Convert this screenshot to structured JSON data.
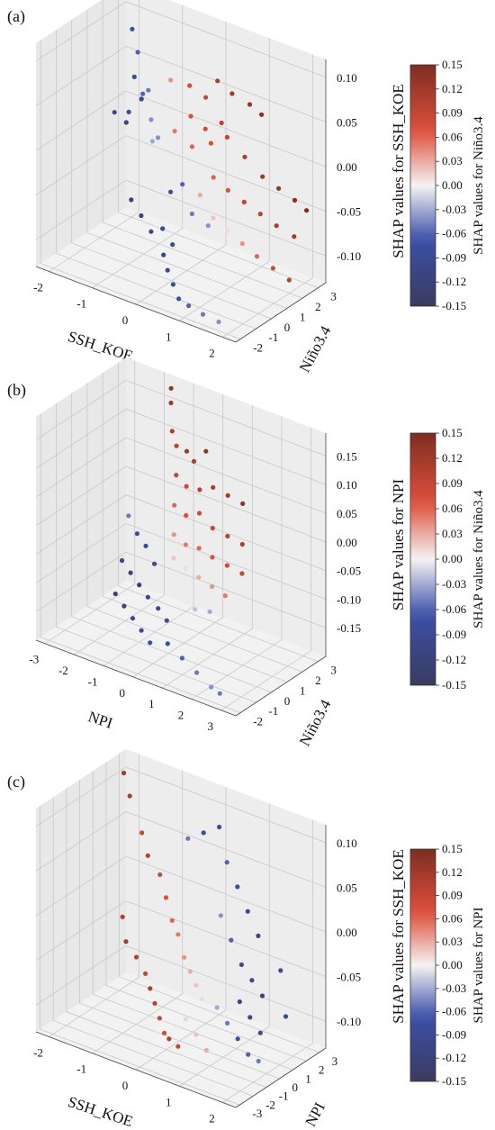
{
  "colors": {
    "background": "#ffffff",
    "pane": "#f2f2f2",
    "grid": "#c8c8c8",
    "cmap_low": "#3a3b5e",
    "cmap_mid": "#f4f3f3",
    "cmap_high": "#7d2d21"
  },
  "chart_data": [
    {
      "type": "scatter3d",
      "panel_label": "(a)",
      "xlabel": "SSH_KOE",
      "ylabel": "Niño3.4",
      "zlabel": "SHAP values for SSH_KOE",
      "colorbar_label": "SHAP values for Niño3.4",
      "xticks": [
        "-2",
        "-1",
        "0",
        "1",
        "2"
      ],
      "yticks": [
        "-2",
        "-1",
        "0",
        "1",
        "2",
        "3"
      ],
      "zticks": [
        "-0.10",
        "-0.05",
        "0.00",
        "0.05",
        "0.10"
      ],
      "colorbar_ticks": [
        "-0.15",
        "-0.12",
        "-0.09",
        "-0.06",
        "-0.03",
        "0.00",
        "0.03",
        "0.06",
        "0.09",
        "0.12",
        "0.15"
      ],
      "xlim": [
        -2.3,
        2.3
      ],
      "ylim": [
        -2.3,
        3.5
      ],
      "zlim": [
        -0.13,
        0.12
      ],
      "clim": [
        -0.15,
        0.15
      ],
      "points": [
        {
          "x": -2.0,
          "y": 2.8,
          "z": 0.12,
          "c": -0.05
        },
        {
          "x": -1.8,
          "y": 2.5,
          "z": 0.09,
          "c": -0.07
        },
        {
          "x": -1.6,
          "y": 2.3,
          "z": 0.07,
          "c": -0.06
        },
        {
          "x": -1.5,
          "y": 1.8,
          "z": 0.05,
          "c": -0.08
        },
        {
          "x": -1.3,
          "y": 1.7,
          "z": 0.03,
          "c": -0.1
        },
        {
          "x": -1.2,
          "y": 1.5,
          "z": 0.04,
          "c": -0.06
        },
        {
          "x": -1.0,
          "y": 1.3,
          "z": 0.05,
          "c": -0.05
        },
        {
          "x": -0.9,
          "y": 1.2,
          "z": 0.02,
          "c": -0.04
        },
        {
          "x": -0.8,
          "y": 1.0,
          "z": 0.0,
          "c": -0.03
        },
        {
          "x": -0.6,
          "y": 0.8,
          "z": 0.01,
          "c": -0.04
        },
        {
          "x": -1.4,
          "y": 1.0,
          "z": 0.01,
          "c": -0.11
        },
        {
          "x": -1.6,
          "y": 0.8,
          "z": 0.02,
          "c": -0.1
        },
        {
          "x": -1.2,
          "y": 0.6,
          "z": 0.03,
          "c": -0.08
        },
        {
          "x": -0.7,
          "y": 1.9,
          "z": 0.06,
          "c": 0.04
        },
        {
          "x": -0.3,
          "y": 2.0,
          "z": 0.06,
          "c": 0.08
        },
        {
          "x": 0.0,
          "y": 2.2,
          "z": 0.05,
          "c": 0.09
        },
        {
          "x": 0.2,
          "y": 2.4,
          "z": 0.07,
          "c": 0.11
        },
        {
          "x": 0.5,
          "y": 2.5,
          "z": 0.06,
          "c": 0.12
        },
        {
          "x": 0.8,
          "y": 2.8,
          "z": 0.05,
          "c": 0.13
        },
        {
          "x": 1.0,
          "y": 3.0,
          "z": 0.04,
          "c": 0.14
        },
        {
          "x": -0.2,
          "y": 1.8,
          "z": 0.03,
          "c": 0.07
        },
        {
          "x": 0.1,
          "y": 1.9,
          "z": 0.02,
          "c": 0.08
        },
        {
          "x": 0.4,
          "y": 2.1,
          "z": 0.03,
          "c": 0.1
        },
        {
          "x": -0.5,
          "y": 1.6,
          "z": 0.01,
          "c": 0.05
        },
        {
          "x": -0.1,
          "y": 1.6,
          "z": 0.0,
          "c": 0.06
        },
        {
          "x": 0.3,
          "y": 1.7,
          "z": 0.01,
          "c": 0.07
        },
        {
          "x": 0.6,
          "y": 1.9,
          "z": 0.02,
          "c": 0.09
        },
        {
          "x": 0.9,
          "y": 2.2,
          "z": 0.0,
          "c": 0.11
        },
        {
          "x": 1.2,
          "y": 2.5,
          "z": -0.02,
          "c": 0.12
        },
        {
          "x": 1.5,
          "y": 2.7,
          "z": -0.03,
          "c": 0.13
        },
        {
          "x": 1.8,
          "y": 2.9,
          "z": -0.04,
          "c": 0.14
        },
        {
          "x": 2.0,
          "y": 3.1,
          "z": -0.05,
          "c": 0.15
        },
        {
          "x": 0.5,
          "y": 1.3,
          "z": -0.02,
          "c": 0.06
        },
        {
          "x": 0.8,
          "y": 1.4,
          "z": -0.03,
          "c": 0.07
        },
        {
          "x": 1.1,
          "y": 1.6,
          "z": -0.04,
          "c": 0.09
        },
        {
          "x": 1.4,
          "y": 1.8,
          "z": -0.05,
          "c": 0.1
        },
        {
          "x": 1.7,
          "y": 2.0,
          "z": -0.06,
          "c": 0.11
        },
        {
          "x": 2.0,
          "y": 2.3,
          "z": -0.07,
          "c": 0.12
        },
        {
          "x": 0.3,
          "y": 1.0,
          "z": -0.04,
          "c": 0.03
        },
        {
          "x": 0.6,
          "y": 1.0,
          "z": -0.06,
          "c": 0.02
        },
        {
          "x": 0.9,
          "y": 1.1,
          "z": -0.07,
          "c": 0.01
        },
        {
          "x": 1.2,
          "y": 1.2,
          "z": -0.08,
          "c": 0.04
        },
        {
          "x": 1.5,
          "y": 1.3,
          "z": -0.09,
          "c": 0.06
        },
        {
          "x": 1.8,
          "y": 1.5,
          "z": -0.1,
          "c": 0.08
        },
        {
          "x": 2.1,
          "y": 1.7,
          "z": -0.11,
          "c": 0.1
        },
        {
          "x": -1.0,
          "y": 0.2,
          "z": -0.06,
          "c": -0.12
        },
        {
          "x": -0.7,
          "y": 0.0,
          "z": -0.07,
          "c": -0.11
        },
        {
          "x": -0.4,
          "y": -0.2,
          "z": -0.08,
          "c": -0.1
        },
        {
          "x": -0.1,
          "y": -0.3,
          "z": -0.07,
          "c": -0.09
        },
        {
          "x": 0.2,
          "y": -0.5,
          "z": -0.08,
          "c": -0.08
        },
        {
          "x": 0.1,
          "y": -0.8,
          "z": -0.09,
          "c": -0.1
        },
        {
          "x": 0.3,
          "y": -1.1,
          "z": -0.1,
          "c": -0.09
        },
        {
          "x": 0.5,
          "y": -1.3,
          "z": -0.11,
          "c": -0.08
        },
        {
          "x": 0.7,
          "y": -1.5,
          "z": -0.12,
          "c": -0.07
        },
        {
          "x": 1.0,
          "y": -1.7,
          "z": -0.12,
          "c": -0.06
        },
        {
          "x": 1.4,
          "y": -1.9,
          "z": -0.12,
          "c": -0.05
        },
        {
          "x": 1.8,
          "y": -2.0,
          "z": -0.12,
          "c": -0.04
        },
        {
          "x": 0.4,
          "y": 0.2,
          "z": -0.05,
          "c": -0.05
        },
        {
          "x": 0.7,
          "y": 0.4,
          "z": -0.06,
          "c": -0.04
        },
        {
          "x": -0.2,
          "y": 0.5,
          "z": -0.04,
          "c": -0.07
        },
        {
          "x": 0.0,
          "y": 0.7,
          "z": -0.03,
          "c": -0.06
        }
      ]
    },
    {
      "type": "scatter3d",
      "panel_label": "(b)",
      "xlabel": "NPI",
      "ylabel": "Niño3.4",
      "zlabel": "SHAP values for NPI",
      "colorbar_label": "SHAP values for Niño3.4",
      "xticks": [
        "-3",
        "-2",
        "-1",
        "0",
        "1",
        "2",
        "3"
      ],
      "yticks": [
        "-2",
        "-1",
        "0",
        "1",
        "2",
        "3"
      ],
      "zticks": [
        "-0.15",
        "-0.10",
        "-0.05",
        "0.00",
        "0.05",
        "0.10",
        "0.15"
      ],
      "colorbar_ticks": [
        "-0.15",
        "-0.12",
        "-0.09",
        "-0.06",
        "-0.03",
        "0.00",
        "0.03",
        "0.06",
        "0.09",
        "0.12",
        "0.15"
      ],
      "xlim": [
        -3.3,
        3.5
      ],
      "ylim": [
        -2.3,
        3.5
      ],
      "zlim": [
        -0.2,
        0.19
      ],
      "clim": [
        -0.15,
        0.15
      ],
      "points": [
        {
          "x": -1.5,
          "y": 3.0,
          "z": 0.18,
          "c": 0.13
        },
        {
          "x": -1.4,
          "y": 2.8,
          "z": 0.16,
          "c": 0.12
        },
        {
          "x": -1.2,
          "y": 2.5,
          "z": 0.12,
          "c": 0.11
        },
        {
          "x": -1.0,
          "y": 2.4,
          "z": 0.1,
          "c": 0.1
        },
        {
          "x": -0.6,
          "y": 2.3,
          "z": 0.1,
          "c": 0.12
        },
        {
          "x": -0.3,
          "y": 2.2,
          "z": 0.09,
          "c": 0.11
        },
        {
          "x": 0.0,
          "y": 2.4,
          "z": 0.11,
          "c": 0.13
        },
        {
          "x": -0.8,
          "y": 2.0,
          "z": 0.06,
          "c": 0.09
        },
        {
          "x": -0.4,
          "y": 1.9,
          "z": 0.05,
          "c": 0.08
        },
        {
          "x": 0.0,
          "y": 2.0,
          "z": 0.05,
          "c": 0.1
        },
        {
          "x": 0.4,
          "y": 2.1,
          "z": 0.06,
          "c": 0.11
        },
        {
          "x": 0.8,
          "y": 2.3,
          "z": 0.05,
          "c": 0.12
        },
        {
          "x": 1.2,
          "y": 2.5,
          "z": 0.04,
          "c": 0.13
        },
        {
          "x": -0.6,
          "y": 1.5,
          "z": 0.02,
          "c": 0.06
        },
        {
          "x": -0.2,
          "y": 1.5,
          "z": 0.01,
          "c": 0.07
        },
        {
          "x": 0.2,
          "y": 1.6,
          "z": 0.02,
          "c": 0.08
        },
        {
          "x": 0.6,
          "y": 1.7,
          "z": 0.0,
          "c": 0.09
        },
        {
          "x": 1.0,
          "y": 1.9,
          "z": -0.01,
          "c": 0.1
        },
        {
          "x": 1.4,
          "y": 2.1,
          "z": -0.02,
          "c": 0.11
        },
        {
          "x": -0.4,
          "y": 1.1,
          "z": -0.02,
          "c": 0.04
        },
        {
          "x": 0.0,
          "y": 1.1,
          "z": -0.03,
          "c": 0.05
        },
        {
          "x": 0.4,
          "y": 1.2,
          "z": -0.03,
          "c": 0.06
        },
        {
          "x": 0.8,
          "y": 1.3,
          "z": -0.04,
          "c": 0.07
        },
        {
          "x": 1.2,
          "y": 1.5,
          "z": -0.05,
          "c": 0.08
        },
        {
          "x": 1.6,
          "y": 1.7,
          "z": -0.06,
          "c": 0.09
        },
        {
          "x": -0.2,
          "y": 0.7,
          "z": -0.05,
          "c": 0.02
        },
        {
          "x": 0.2,
          "y": 0.7,
          "z": -0.06,
          "c": 0.01
        },
        {
          "x": 0.6,
          "y": 0.8,
          "z": -0.07,
          "c": 0.03
        },
        {
          "x": 1.0,
          "y": 0.9,
          "z": -0.08,
          "c": 0.04
        },
        {
          "x": 1.4,
          "y": 1.0,
          "z": -0.09,
          "c": 0.05
        },
        {
          "x": -2.0,
          "y": 1.2,
          "z": -0.02,
          "c": -0.05
        },
        {
          "x": -1.6,
          "y": 1.0,
          "z": -0.04,
          "c": -0.07
        },
        {
          "x": -1.2,
          "y": 0.8,
          "z": -0.05,
          "c": -0.08
        },
        {
          "x": -0.8,
          "y": 0.6,
          "z": -0.07,
          "c": -0.09
        },
        {
          "x": -1.8,
          "y": 0.4,
          "z": -0.08,
          "c": -0.1
        },
        {
          "x": -1.4,
          "y": 0.2,
          "z": -0.09,
          "c": -0.11
        },
        {
          "x": -1.0,
          "y": 0.0,
          "z": -0.1,
          "c": -0.12
        },
        {
          "x": -0.6,
          "y": -0.2,
          "z": -0.11,
          "c": -0.1
        },
        {
          "x": -0.2,
          "y": -0.3,
          "z": -0.12,
          "c": -0.09
        },
        {
          "x": 0.2,
          "y": -0.5,
          "z": -0.13,
          "c": -0.08
        },
        {
          "x": -1.6,
          "y": -0.4,
          "z": -0.12,
          "c": -0.12
        },
        {
          "x": -1.2,
          "y": -0.6,
          "z": -0.13,
          "c": -0.11
        },
        {
          "x": -0.8,
          "y": -0.8,
          "z": -0.14,
          "c": -0.1
        },
        {
          "x": -0.4,
          "y": -1.0,
          "z": -0.15,
          "c": -0.09
        },
        {
          "x": 0.0,
          "y": -1.2,
          "z": -0.16,
          "c": -0.08
        },
        {
          "x": 0.6,
          "y": -1.2,
          "z": -0.15,
          "c": -0.07
        },
        {
          "x": 1.2,
          "y": -1.4,
          "z": -0.16,
          "c": -0.06
        },
        {
          "x": 1.8,
          "y": -1.6,
          "z": -0.17,
          "c": -0.05
        },
        {
          "x": 2.4,
          "y": -1.8,
          "z": -0.18,
          "c": -0.04
        },
        {
          "x": 2.8,
          "y": -2.0,
          "z": -0.18,
          "c": -0.05
        },
        {
          "x": 1.0,
          "y": -0.2,
          "z": -0.1,
          "c": -0.02
        },
        {
          "x": 1.4,
          "y": 0.0,
          "z": -0.1,
          "c": -0.03
        }
      ]
    },
    {
      "type": "scatter3d",
      "panel_label": "(c)",
      "xlabel": "SSH_KOE",
      "ylabel": "NPI",
      "zlabel": "SHAP values for SSH_KOE",
      "colorbar_label": "SHAP values for NPI",
      "xticks": [
        "-2",
        "-1",
        "0",
        "1",
        "2"
      ],
      "yticks": [
        "-3",
        "-2",
        "-1",
        "0",
        "1",
        "2",
        "3"
      ],
      "zticks": [
        "-0.10",
        "-0.05",
        "0.00",
        "0.05",
        "0.10"
      ],
      "colorbar_ticks": [
        "-0.15",
        "-0.12",
        "-0.09",
        "-0.06",
        "-0.03",
        "0.00",
        "0.03",
        "0.06",
        "0.09",
        "0.12",
        "0.15"
      ],
      "xlim": [
        -2.3,
        2.3
      ],
      "ylim": [
        -3.3,
        3.5
      ],
      "zlim": [
        -0.13,
        0.12
      ],
      "clim": [
        -0.15,
        0.15
      ],
      "points": [
        {
          "x": -2.2,
          "y": 3.0,
          "z": 0.1,
          "c": 0.12
        },
        {
          "x": -2.0,
          "y": 2.8,
          "z": 0.08,
          "c": 0.11
        },
        {
          "x": -1.6,
          "y": 2.4,
          "z": 0.05,
          "c": 0.09
        },
        {
          "x": -1.4,
          "y": 2.2,
          "z": 0.03,
          "c": 0.1
        },
        {
          "x": -1.8,
          "y": 1.6,
          "z": -0.04,
          "c": 0.11
        },
        {
          "x": -1.6,
          "y": 1.2,
          "z": -0.06,
          "c": 0.12
        },
        {
          "x": -1.3,
          "y": 1.0,
          "z": -0.07,
          "c": 0.1
        },
        {
          "x": -1.0,
          "y": 0.7,
          "z": -0.08,
          "c": 0.09
        },
        {
          "x": -0.8,
          "y": 0.4,
          "z": -0.09,
          "c": 0.11
        },
        {
          "x": -0.6,
          "y": 0.1,
          "z": -0.1,
          "c": 0.1
        },
        {
          "x": -0.4,
          "y": -0.2,
          "z": -0.11,
          "c": 0.09
        },
        {
          "x": -0.2,
          "y": -0.5,
          "z": -0.12,
          "c": 0.08
        },
        {
          "x": 0.0,
          "y": -0.8,
          "z": -0.12,
          "c": 0.1
        },
        {
          "x": 0.3,
          "y": -1.1,
          "z": -0.12,
          "c": 0.09
        },
        {
          "x": -1.0,
          "y": 1.8,
          "z": 0.02,
          "c": 0.08
        },
        {
          "x": -0.8,
          "y": 1.6,
          "z": 0.0,
          "c": 0.07
        },
        {
          "x": -0.6,
          "y": 1.4,
          "z": -0.02,
          "c": 0.06
        },
        {
          "x": -0.4,
          "y": 1.2,
          "z": -0.03,
          "c": 0.05
        },
        {
          "x": -0.2,
          "y": 1.0,
          "z": -0.05,
          "c": 0.04
        },
        {
          "x": 0.0,
          "y": 0.8,
          "z": -0.06,
          "c": 0.03
        },
        {
          "x": 0.2,
          "y": 0.6,
          "z": -0.07,
          "c": 0.02
        },
        {
          "x": 0.4,
          "y": 0.4,
          "z": -0.08,
          "c": 0.01
        },
        {
          "x": -0.6,
          "y": 2.6,
          "z": 0.06,
          "c": -0.05
        },
        {
          "x": -0.3,
          "y": 2.8,
          "z": 0.07,
          "c": -0.07
        },
        {
          "x": 0.0,
          "y": 3.0,
          "z": 0.08,
          "c": -0.08
        },
        {
          "x": 0.3,
          "y": 2.6,
          "z": 0.05,
          "c": -0.06
        },
        {
          "x": 0.6,
          "y": 2.4,
          "z": 0.03,
          "c": -0.07
        },
        {
          "x": 0.9,
          "y": 2.2,
          "z": 0.01,
          "c": -0.09
        },
        {
          "x": 1.2,
          "y": 2.0,
          "z": -0.01,
          "c": -0.1
        },
        {
          "x": 0.4,
          "y": 1.8,
          "z": 0.0,
          "c": -0.04
        },
        {
          "x": 0.7,
          "y": 1.6,
          "z": -0.02,
          "c": -0.06
        },
        {
          "x": 1.0,
          "y": 1.4,
          "z": -0.04,
          "c": -0.08
        },
        {
          "x": 1.3,
          "y": 1.2,
          "z": -0.05,
          "c": -0.1
        },
        {
          "x": 1.6,
          "y": 1.0,
          "z": -0.06,
          "c": -0.12
        },
        {
          "x": 1.2,
          "y": 0.6,
          "z": -0.07,
          "c": -0.11
        },
        {
          "x": 1.5,
          "y": 0.4,
          "z": -0.08,
          "c": -0.1
        },
        {
          "x": 1.8,
          "y": 0.2,
          "z": -0.09,
          "c": -0.09
        },
        {
          "x": 0.8,
          "y": 0.2,
          "z": -0.08,
          "c": -0.03
        },
        {
          "x": 1.1,
          "y": 0.0,
          "z": -0.09,
          "c": -0.05
        },
        {
          "x": 1.4,
          "y": -0.2,
          "z": -0.1,
          "c": -0.07
        },
        {
          "x": 1.7,
          "y": -0.4,
          "z": -0.11,
          "c": -0.06
        },
        {
          "x": 2.0,
          "y": -0.6,
          "z": -0.11,
          "c": -0.05
        },
        {
          "x": 2.2,
          "y": 0.8,
          "z": -0.07,
          "c": -0.08
        },
        {
          "x": 1.9,
          "y": 1.4,
          "z": -0.03,
          "c": -0.09
        },
        {
          "x": 0.2,
          "y": -0.2,
          "z": -0.1,
          "c": -0.01
        },
        {
          "x": 0.5,
          "y": -0.4,
          "z": -0.11,
          "c": 0.02
        },
        {
          "x": 0.8,
          "y": -0.6,
          "z": -0.12,
          "c": 0.03
        }
      ]
    }
  ]
}
